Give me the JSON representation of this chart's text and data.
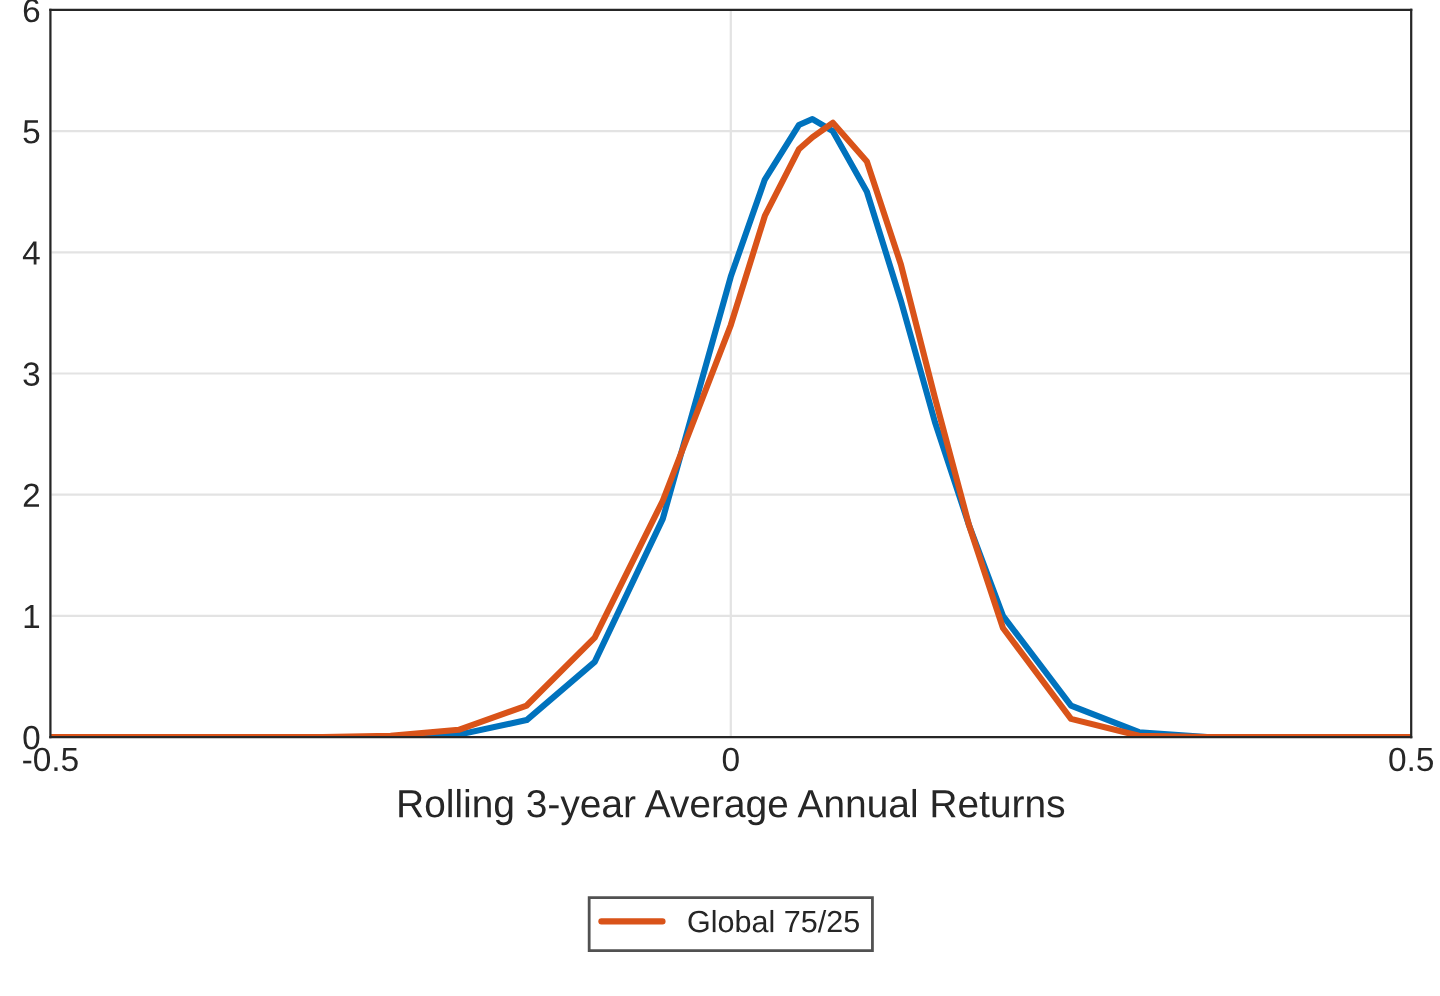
{
  "chart_data": {
    "type": "line",
    "xlabel": "Rolling 3-year Average Annual Returns",
    "x": [
      -0.5,
      -0.3,
      -0.25,
      -0.2,
      -0.15,
      -0.1,
      -0.05,
      0,
      0.025,
      0.05,
      0.06,
      0.075,
      0.1,
      0.125,
      0.15,
      0.175,
      0.2,
      0.25,
      0.3,
      0.35,
      0.5
    ],
    "series": [
      {
        "color": "#0072bd",
        "values": [
          null,
          null,
          0,
          0.02,
          0.14,
          0.62,
          1.8,
          3.8,
          4.6,
          5.05,
          5.1,
          5.0,
          4.5,
          3.6,
          2.6,
          1.75,
          1.0,
          0.26,
          0.04,
          0,
          0
        ]
      },
      {
        "name": "Global 75/25",
        "color": "#d95319",
        "values": [
          0,
          0,
          0.01,
          0.06,
          0.26,
          0.82,
          1.95,
          3.4,
          4.3,
          4.85,
          4.95,
          5.07,
          4.75,
          3.9,
          2.8,
          1.75,
          0.9,
          0.15,
          0.01,
          0,
          0
        ]
      }
    ],
    "xlim": [
      -0.5,
      0.5
    ],
    "xticks": [
      -0.5,
      0,
      0.5
    ],
    "ylim": [
      0,
      6
    ],
    "yticks": [
      0,
      1,
      2,
      3,
      4,
      5,
      6
    ],
    "grid": true,
    "legend": "bottom",
    "line_style": "solid",
    "marker": "none"
  }
}
